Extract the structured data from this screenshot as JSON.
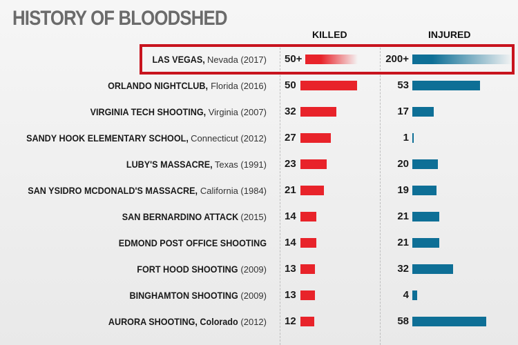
{
  "title": "HISTORY OF BLOODSHED",
  "columns": {
    "killed": "KILLED",
    "injured": "INJURED"
  },
  "colors": {
    "killed": "#e8232a",
    "injured": "#0e6f96",
    "highlight": "#c8141e"
  },
  "rows": [
    {
      "name": "LAS VEGAS,",
      "detail": " Nevada (2017)",
      "killed_label": "50+",
      "injured_label": "200+",
      "highlight": true
    },
    {
      "name": "ORLANDO NIGHTCLUB,",
      "detail": " Florida (2016)",
      "killed_label": "50",
      "injured_label": "53"
    },
    {
      "name": "VIRGINIA TECH SHOOTING,",
      "detail": " Virginia (2007)",
      "killed_label": "32",
      "injured_label": "17"
    },
    {
      "name": "SANDY HOOK ELEMENTARY SCHOOL,",
      "detail": " Connecticut (2012)",
      "killed_label": "27",
      "injured_label": "1"
    },
    {
      "name": "LUBY'S MASSACRE,",
      "detail": " Texas (1991)",
      "killed_label": "23",
      "injured_label": "20"
    },
    {
      "name": "SAN YSIDRO MCDONALD'S MASSACRE,",
      "detail": " California (1984)",
      "killed_label": "21",
      "injured_label": "19"
    },
    {
      "name": "SAN BERNARDINO ATTACK",
      "detail": " (2015)",
      "killed_label": "14",
      "injured_label": "21"
    },
    {
      "name": "EDMOND POST OFFICE SHOOTING",
      "detail": "",
      "killed_label": "14",
      "injured_label": "21"
    },
    {
      "name": "FORT HOOD SHOOTING",
      "detail": " (2009)",
      "killed_label": "13",
      "injured_label": "32"
    },
    {
      "name": "BINGHAMTON SHOOTING",
      "detail": " (2009)",
      "killed_label": "13",
      "injured_label": "4"
    },
    {
      "name": "AURORA SHOOTING, Colorado",
      "detail": " (2012)",
      "killed_label": "12",
      "injured_label": "58"
    }
  ],
  "chart_data": {
    "type": "bar",
    "title": "HISTORY OF BLOODSHED",
    "categories": [
      "LAS VEGAS, Nevada (2017)",
      "ORLANDO NIGHTCLUB, Florida (2016)",
      "VIRGINIA TECH SHOOTING, Virginia (2007)",
      "SANDY HOOK ELEMENTARY SCHOOL, Connecticut (2012)",
      "LUBY'S MASSACRE, Texas (1991)",
      "SAN YSIDRO MCDONALD'S MASSACRE, California (1984)",
      "SAN BERNARDINO ATTACK (2015)",
      "EDMOND POST OFFICE SHOOTING",
      "FORT HOOD SHOOTING (2009)",
      "BINGHAMTON SHOOTING (2009)",
      "AURORA SHOOTING, Colorado (2012)"
    ],
    "series": [
      {
        "name": "KILLED",
        "values": [
          50,
          50,
          32,
          27,
          23,
          21,
          14,
          14,
          13,
          13,
          12
        ]
      },
      {
        "name": "INJURED",
        "values": [
          200,
          53,
          17,
          1,
          20,
          19,
          21,
          21,
          32,
          4,
          58
        ]
      }
    ],
    "orientation": "horizontal",
    "grid": false
  }
}
